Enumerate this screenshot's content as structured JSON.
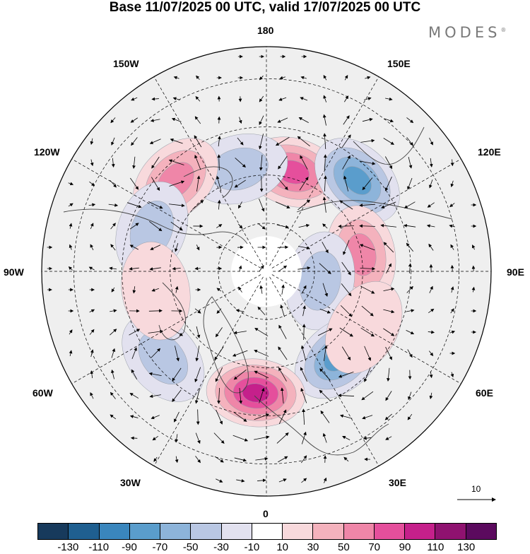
{
  "title": "Base 11/07/2025 00 UTC, valid 17/07/2025 00 UTC",
  "logo": "MODES",
  "logo_mark": "®",
  "longitude_labels": {
    "top": "180",
    "bottom": "0",
    "left": "90W",
    "right": "90E",
    "upper_left_1": "150W",
    "upper_left_2": "120W",
    "upper_right_1": "150E",
    "upper_right_2": "120E",
    "lower_left_1": "60W",
    "lower_left_2": "30W",
    "lower_right_1": "60E",
    "lower_right_2": "30E"
  },
  "vector_reference": {
    "value": "10"
  },
  "colorbar": {
    "colors": [
      "#173a5c",
      "#1f5f90",
      "#3a86bd",
      "#5a9dcc",
      "#8db4da",
      "#b9c7e3",
      "#e2e1ef",
      "#ffffff",
      "#f8d9dc",
      "#f4b2bd",
      "#ef86a8",
      "#e54f9c",
      "#c5208b",
      "#8f1270",
      "#5b0a5e"
    ],
    "tick_labels": [
      "-130",
      "-110",
      "-90",
      "-70",
      "-50",
      "-30",
      "-10",
      "10",
      "30",
      "50",
      "70",
      "90",
      "110",
      "130"
    ],
    "tick_values": [
      -130,
      -110,
      -90,
      -70,
      -50,
      -30,
      -10,
      10,
      30,
      50,
      70,
      90,
      110,
      130
    ]
  },
  "anomaly_centers": [
    {
      "lon": 165,
      "lat": 58,
      "value": 95
    },
    {
      "lon": -165,
      "lat": 57,
      "value": -55
    },
    {
      "lon": -135,
      "lat": 50,
      "value": 75
    },
    {
      "lon": -110,
      "lat": 52,
      "value": -45
    },
    {
      "lon": 135,
      "lat": 50,
      "value": -85
    },
    {
      "lon": 100,
      "lat": 60,
      "value": 65
    },
    {
      "lon": 80,
      "lat": 73,
      "value": -40
    },
    {
      "lon": 40,
      "lat": 55,
      "value": -95
    },
    {
      "lon": -5,
      "lat": 52,
      "value": 105
    },
    {
      "lon": -50,
      "lat": 48,
      "value": -50
    },
    {
      "lon": -80,
      "lat": 55,
      "value": 25
    },
    {
      "lon": 60,
      "lat": 55,
      "value": 25
    }
  ]
}
